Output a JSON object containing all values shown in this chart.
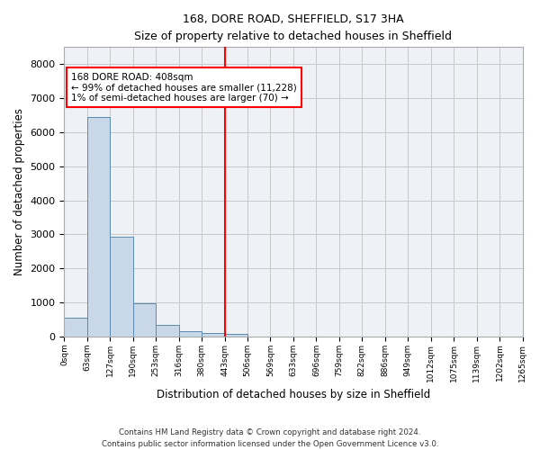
{
  "title": "168, DORE ROAD, SHEFFIELD, S17 3HA",
  "subtitle": "Size of property relative to detached houses in Sheffield",
  "xlabel": "Distribution of detached houses by size in Sheffield",
  "ylabel": "Number of detached properties",
  "footer_line1": "Contains HM Land Registry data © Crown copyright and database right 2024.",
  "footer_line2": "Contains public sector information licensed under the Open Government Licence v3.0.",
  "bin_labels": [
    "0sqm",
    "63sqm",
    "127sqm",
    "190sqm",
    "253sqm",
    "316sqm",
    "380sqm",
    "443sqm",
    "506sqm",
    "569sqm",
    "633sqm",
    "696sqm",
    "759sqm",
    "822sqm",
    "886sqm",
    "949sqm",
    "1012sqm",
    "1075sqm",
    "1139sqm",
    "1202sqm",
    "1265sqm"
  ],
  "bar_values": [
    550,
    6450,
    2930,
    975,
    335,
    155,
    100,
    75,
    0,
    0,
    0,
    0,
    0,
    0,
    0,
    0,
    0,
    0,
    0,
    0
  ],
  "bar_color": "#c8d8e8",
  "bar_edge_color": "#5a8ab0",
  "vline_x": 7.0,
  "vline_color": "red",
  "annotation_line1": "168 DORE ROAD: 408sqm",
  "annotation_line2": "← 99% of detached houses are smaller (11,228)",
  "annotation_line3": "1% of semi-detached houses are larger (70) →",
  "ylim": [
    0,
    8500
  ],
  "grid_color": "#c8c8c8",
  "bg_color": "#eef2f7",
  "yticks": [
    0,
    1000,
    2000,
    3000,
    4000,
    5000,
    6000,
    7000,
    8000
  ]
}
